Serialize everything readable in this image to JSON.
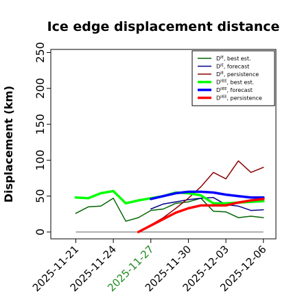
{
  "chart_data": {
    "type": "line",
    "title": "Ice edge displacement distance",
    "xlabel": "",
    "ylabel": "Displacement (km)",
    "ylim": [
      0,
      260
    ],
    "xlim": [
      "2025-11-19",
      "2025-12-07"
    ],
    "yticks": [
      0,
      50,
      100,
      150,
      200,
      250
    ],
    "xticks": [
      {
        "date": "2025-11-21",
        "label": "2025-11-21",
        "color": "#000000"
      },
      {
        "date": "2025-11-24",
        "label": "2025-11-24",
        "color": "#000000"
      },
      {
        "date": "2025-11-27",
        "label": "2025-11-27",
        "color": "#228b22"
      },
      {
        "date": "2025-11-30",
        "label": "2025-11-30",
        "color": "#000000"
      },
      {
        "date": "2025-12-03",
        "label": "2025-12-03",
        "color": "#000000"
      },
      {
        "date": "2025-12-06",
        "label": "2025-12-06",
        "color": "#000000"
      }
    ],
    "legend": {
      "position": "top-right"
    },
    "reference_line": {
      "y": 0,
      "color": "#808080",
      "x_from": "2025-11-21",
      "x_to": "2025-12-06"
    },
    "series": [
      {
        "name": "D_best est.",
        "sup": "IE",
        "color": "#006400",
        "width": 1.5,
        "x": [
          "2025-11-21",
          "2025-11-22",
          "2025-11-23",
          "2025-11-24",
          "2025-11-25",
          "2025-11-26",
          "2025-11-27",
          "2025-11-28",
          "2025-11-29",
          "2025-11-30",
          "2025-12-01",
          "2025-12-02",
          "2025-12-03",
          "2025-12-04",
          "2025-12-05",
          "2025-12-06"
        ],
        "y": [
          26,
          35,
          36,
          47,
          15,
          20,
          30,
          32,
          40,
          42,
          47,
          29,
          28,
          20,
          22,
          20
        ]
      },
      {
        "name": "D_forecast",
        "sup": "IE",
        "color": "#00008b",
        "width": 1.5,
        "x": [
          "2025-11-27",
          "2025-11-28",
          "2025-11-29",
          "2025-11-30",
          "2025-12-01",
          "2025-12-02",
          "2025-12-03",
          "2025-12-04",
          "2025-12-05",
          "2025-12-06"
        ],
        "y": [
          32,
          39,
          42,
          45,
          47,
          48,
          38,
          36,
          30,
          31
        ]
      },
      {
        "name": "D_persistence",
        "sup": "IE",
        "color": "#8b0000",
        "width": 1.5,
        "x": [
          "2025-11-26",
          "2025-11-27",
          "2025-11-28",
          "2025-11-29",
          "2025-11-30",
          "2025-12-01",
          "2025-12-02",
          "2025-12-03",
          "2025-12-04",
          "2025-12-05",
          "2025-12-06"
        ],
        "y": [
          0,
          10,
          20,
          33,
          47,
          63,
          83,
          74,
          99,
          83,
          90
        ]
      },
      {
        "name": "D_best est.",
        "sup": "IIEE",
        "color": "#00ff00",
        "width": 3.5,
        "x": [
          "2025-11-21",
          "2025-11-22",
          "2025-11-23",
          "2025-11-24",
          "2025-11-25",
          "2025-11-26",
          "2025-11-27",
          "2025-11-28",
          "2025-11-29",
          "2025-11-30",
          "2025-12-01",
          "2025-12-02",
          "2025-12-03",
          "2025-12-04",
          "2025-12-05",
          "2025-12-06"
        ],
        "y": [
          48,
          47,
          54,
          57,
          40,
          44,
          47,
          50,
          55,
          54,
          51,
          40,
          40,
          41,
          42,
          43
        ]
      },
      {
        "name": "D_forecast",
        "sup": "IIEE",
        "color": "#0000ff",
        "width": 3.5,
        "x": [
          "2025-11-27",
          "2025-11-28",
          "2025-11-29",
          "2025-11-30",
          "2025-12-01",
          "2025-12-02",
          "2025-12-03",
          "2025-12-04",
          "2025-12-05",
          "2025-12-06"
        ],
        "y": [
          46,
          50,
          54,
          56,
          56,
          55,
          52,
          50,
          48,
          48
        ]
      },
      {
        "name": "D_persistence",
        "sup": "IIEE",
        "color": "#ff0000",
        "width": 3.5,
        "x": [
          "2025-11-26",
          "2025-11-27",
          "2025-11-28",
          "2025-11-29",
          "2025-11-30",
          "2025-12-01",
          "2025-12-02",
          "2025-12-03",
          "2025-12-04",
          "2025-12-05",
          "2025-12-06"
        ],
        "y": [
          0,
          9,
          18,
          27,
          33,
          37,
          37,
          37,
          41,
          44,
          46
        ]
      }
    ]
  }
}
